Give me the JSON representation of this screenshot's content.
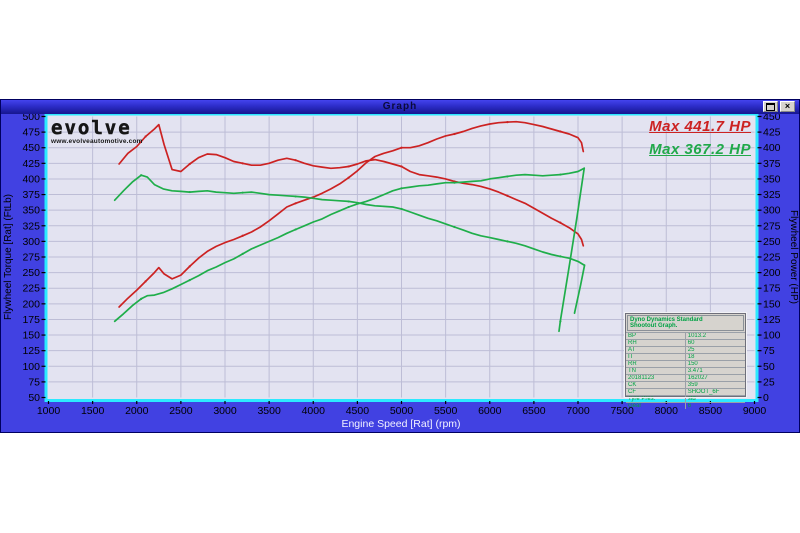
{
  "window": {
    "title": "Graph"
  },
  "logo": {
    "name": "evolve",
    "url": "www.evolveautomotive.com"
  },
  "annotations": {
    "max_power_red": "Max 441.7 HP",
    "max_power_green": "Max 367.2 HP"
  },
  "info_table": {
    "header_line1": "Dyno Dynamics Standard",
    "header_line2": "Shootout Graph.",
    "rows": [
      [
        "BP",
        "1013.2"
      ],
      [
        "RH",
        "60"
      ],
      [
        "AT",
        "25"
      ],
      [
        "IT",
        "18"
      ],
      [
        "RR",
        "150"
      ],
      [
        "TN",
        "3.471"
      ],
      [
        "20181123",
        "162027"
      ],
      [
        "CK",
        "359"
      ],
      [
        "CF",
        "SHOOT_6F"
      ],
      [
        "Tyre Pres.",
        "std"
      ],
      [
        "Gear",
        "6"
      ]
    ]
  },
  "colors": {
    "body_blue": "#4141e2",
    "plot_bg": "#e3e3f1",
    "grid": "#bdbdd6",
    "border_cyan": "#2de9ff",
    "red": "#cc2222",
    "green": "#1fae4a",
    "tick_text": "#000000",
    "bottom_label_text": "#f2f2ff"
  },
  "chart_data": {
    "type": "line",
    "title": "Graph",
    "xlabel": "Engine Speed [Rat] (rpm)",
    "ylabel_left": "Flywheel Torque [Rat] (FtLb)",
    "ylabel_right": "Flywheel Power (HP)",
    "x_range": [
      1000,
      9000
    ],
    "x_step": 500,
    "y_left_range": [
      50,
      500
    ],
    "y_right_range": [
      0,
      450
    ],
    "y_step": 25,
    "grid": true,
    "legend_position": "none",
    "max_red_hp": 441.7,
    "max_green_hp": 367.2,
    "series": [
      {
        "name": "red-torque",
        "axis": "left",
        "color": "#cc2222",
        "points": [
          [
            1800,
            424
          ],
          [
            1900,
            441
          ],
          [
            2000,
            452
          ],
          [
            2100,
            468
          ],
          [
            2200,
            480
          ],
          [
            2250,
            487
          ],
          [
            2310,
            455
          ],
          [
            2400,
            415
          ],
          [
            2500,
            412
          ],
          [
            2600,
            424
          ],
          [
            2700,
            434
          ],
          [
            2800,
            440
          ],
          [
            2900,
            439
          ],
          [
            3000,
            434
          ],
          [
            3100,
            428
          ],
          [
            3200,
            425
          ],
          [
            3300,
            422
          ],
          [
            3400,
            422
          ],
          [
            3500,
            425
          ],
          [
            3600,
            430
          ],
          [
            3700,
            433
          ],
          [
            3800,
            430
          ],
          [
            3900,
            425
          ],
          [
            4000,
            421
          ],
          [
            4100,
            419
          ],
          [
            4200,
            417
          ],
          [
            4300,
            418
          ],
          [
            4400,
            420
          ],
          [
            4500,
            424
          ],
          [
            4600,
            429
          ],
          [
            4700,
            431
          ],
          [
            4800,
            428
          ],
          [
            4900,
            424
          ],
          [
            5000,
            420
          ],
          [
            5100,
            412
          ],
          [
            5200,
            407
          ],
          [
            5300,
            405
          ],
          [
            5400,
            403
          ],
          [
            5500,
            400
          ],
          [
            5600,
            396
          ],
          [
            5700,
            393
          ],
          [
            5800,
            391
          ],
          [
            5900,
            388
          ],
          [
            6000,
            384
          ],
          [
            6100,
            379
          ],
          [
            6200,
            373
          ],
          [
            6300,
            367
          ],
          [
            6400,
            361
          ],
          [
            6500,
            353
          ],
          [
            6600,
            345
          ],
          [
            6700,
            337
          ],
          [
            6800,
            330
          ],
          [
            6900,
            322
          ],
          [
            7000,
            312
          ],
          [
            7040,
            303
          ],
          [
            7060,
            293
          ]
        ]
      },
      {
        "name": "red-power",
        "axis": "right",
        "color": "#cc2222",
        "points": [
          [
            1800,
            145
          ],
          [
            1900,
            159
          ],
          [
            2000,
            172
          ],
          [
            2100,
            186
          ],
          [
            2200,
            200
          ],
          [
            2250,
            208
          ],
          [
            2310,
            198
          ],
          [
            2400,
            190
          ],
          [
            2500,
            196
          ],
          [
            2600,
            210
          ],
          [
            2700,
            223
          ],
          [
            2800,
            234
          ],
          [
            2900,
            242
          ],
          [
            3000,
            248
          ],
          [
            3100,
            253
          ],
          [
            3200,
            259
          ],
          [
            3300,
            265
          ],
          [
            3400,
            273
          ],
          [
            3500,
            283
          ],
          [
            3600,
            294
          ],
          [
            3700,
            305
          ],
          [
            3800,
            311
          ],
          [
            3900,
            316
          ],
          [
            4000,
            321
          ],
          [
            4100,
            327
          ],
          [
            4200,
            334
          ],
          [
            4300,
            342
          ],
          [
            4400,
            352
          ],
          [
            4500,
            363
          ],
          [
            4600,
            376
          ],
          [
            4700,
            386
          ],
          [
            4800,
            391
          ],
          [
            4900,
            395
          ],
          [
            5000,
            400
          ],
          [
            5100,
            400
          ],
          [
            5200,
            403
          ],
          [
            5300,
            408
          ],
          [
            5400,
            414
          ],
          [
            5500,
            419
          ],
          [
            5600,
            422
          ],
          [
            5700,
            426
          ],
          [
            5800,
            431
          ],
          [
            5900,
            435
          ],
          [
            6000,
            438
          ],
          [
            6100,
            440
          ],
          [
            6200,
            441
          ],
          [
            6300,
            441.7
          ],
          [
            6400,
            440
          ],
          [
            6500,
            437
          ],
          [
            6600,
            434
          ],
          [
            6700,
            430
          ],
          [
            6800,
            426
          ],
          [
            6900,
            422
          ],
          [
            7000,
            416
          ],
          [
            7040,
            408
          ],
          [
            7060,
            394
          ]
        ]
      },
      {
        "name": "green-torque",
        "axis": "left",
        "color": "#1fae4a",
        "points": [
          [
            1750,
            366
          ],
          [
            1850,
            381
          ],
          [
            1950,
            395
          ],
          [
            2050,
            406
          ],
          [
            2120,
            403
          ],
          [
            2200,
            391
          ],
          [
            2300,
            384
          ],
          [
            2400,
            381
          ],
          [
            2500,
            380
          ],
          [
            2600,
            379
          ],
          [
            2700,
            380
          ],
          [
            2800,
            381
          ],
          [
            2900,
            379
          ],
          [
            3000,
            378
          ],
          [
            3100,
            377
          ],
          [
            3200,
            378
          ],
          [
            3300,
            379
          ],
          [
            3400,
            377
          ],
          [
            3500,
            375
          ],
          [
            3600,
            374
          ],
          [
            3700,
            373
          ],
          [
            3800,
            372
          ],
          [
            3900,
            371
          ],
          [
            4000,
            369
          ],
          [
            4100,
            367
          ],
          [
            4200,
            366
          ],
          [
            4300,
            365
          ],
          [
            4400,
            364
          ],
          [
            4500,
            362
          ],
          [
            4600,
            359
          ],
          [
            4700,
            357
          ],
          [
            4800,
            356
          ],
          [
            4900,
            355
          ],
          [
            5000,
            352
          ],
          [
            5100,
            347
          ],
          [
            5200,
            342
          ],
          [
            5300,
            337
          ],
          [
            5400,
            333
          ],
          [
            5500,
            328
          ],
          [
            5600,
            323
          ],
          [
            5700,
            318
          ],
          [
            5800,
            313
          ],
          [
            5900,
            309
          ],
          [
            6000,
            306
          ],
          [
            6100,
            303
          ],
          [
            6200,
            300
          ],
          [
            6300,
            297
          ],
          [
            6400,
            293
          ],
          [
            6500,
            288
          ],
          [
            6600,
            283
          ],
          [
            6700,
            279
          ],
          [
            6800,
            276
          ],
          [
            6900,
            273
          ],
          [
            7000,
            268
          ],
          [
            7070,
            262
          ]
        ]
      },
      {
        "name": "green-power",
        "axis": "right",
        "color": "#1fae4a",
        "points": [
          [
            1750,
            122
          ],
          [
            1850,
            134
          ],
          [
            1950,
            147
          ],
          [
            2050,
            158
          ],
          [
            2120,
            163
          ],
          [
            2200,
            164
          ],
          [
            2300,
            168
          ],
          [
            2400,
            174
          ],
          [
            2500,
            181
          ],
          [
            2600,
            188
          ],
          [
            2700,
            195
          ],
          [
            2800,
            203
          ],
          [
            2900,
            209
          ],
          [
            3000,
            216
          ],
          [
            3100,
            222
          ],
          [
            3200,
            230
          ],
          [
            3300,
            238
          ],
          [
            3400,
            244
          ],
          [
            3500,
            250
          ],
          [
            3600,
            256
          ],
          [
            3700,
            263
          ],
          [
            3800,
            269
          ],
          [
            3900,
            275
          ],
          [
            4000,
            281
          ],
          [
            4100,
            286
          ],
          [
            4200,
            293
          ],
          [
            4300,
            299
          ],
          [
            4400,
            305
          ],
          [
            4500,
            310
          ],
          [
            4600,
            314
          ],
          [
            4700,
            319
          ],
          [
            4800,
            325
          ],
          [
            4900,
            331
          ],
          [
            5000,
            335
          ],
          [
            5100,
            337
          ],
          [
            5200,
            339
          ],
          [
            5300,
            340
          ],
          [
            5400,
            342
          ],
          [
            5500,
            344
          ],
          [
            5600,
            344
          ],
          [
            5700,
            345
          ],
          [
            5800,
            346
          ],
          [
            5900,
            347
          ],
          [
            6000,
            350
          ],
          [
            6100,
            352
          ],
          [
            6200,
            354
          ],
          [
            6300,
            356
          ],
          [
            6400,
            357
          ],
          [
            6500,
            356
          ],
          [
            6600,
            355
          ],
          [
            6700,
            356
          ],
          [
            6800,
            357
          ],
          [
            6900,
            359
          ],
          [
            7000,
            362
          ],
          [
            7070,
            367.2
          ]
        ]
      },
      {
        "name": "green-power-tail",
        "axis": "right",
        "color": "#1fae4a",
        "points": [
          [
            7070,
            367.2
          ],
          [
            6990,
            290
          ],
          [
            6900,
            210
          ],
          [
            6800,
            122
          ],
          [
            6785,
            106
          ]
        ]
      },
      {
        "name": "green-torque-tail",
        "axis": "left",
        "color": "#1fae4a",
        "points": [
          [
            7075,
            262
          ],
          [
            7030,
            230
          ],
          [
            6960,
            185
          ]
        ]
      }
    ]
  }
}
